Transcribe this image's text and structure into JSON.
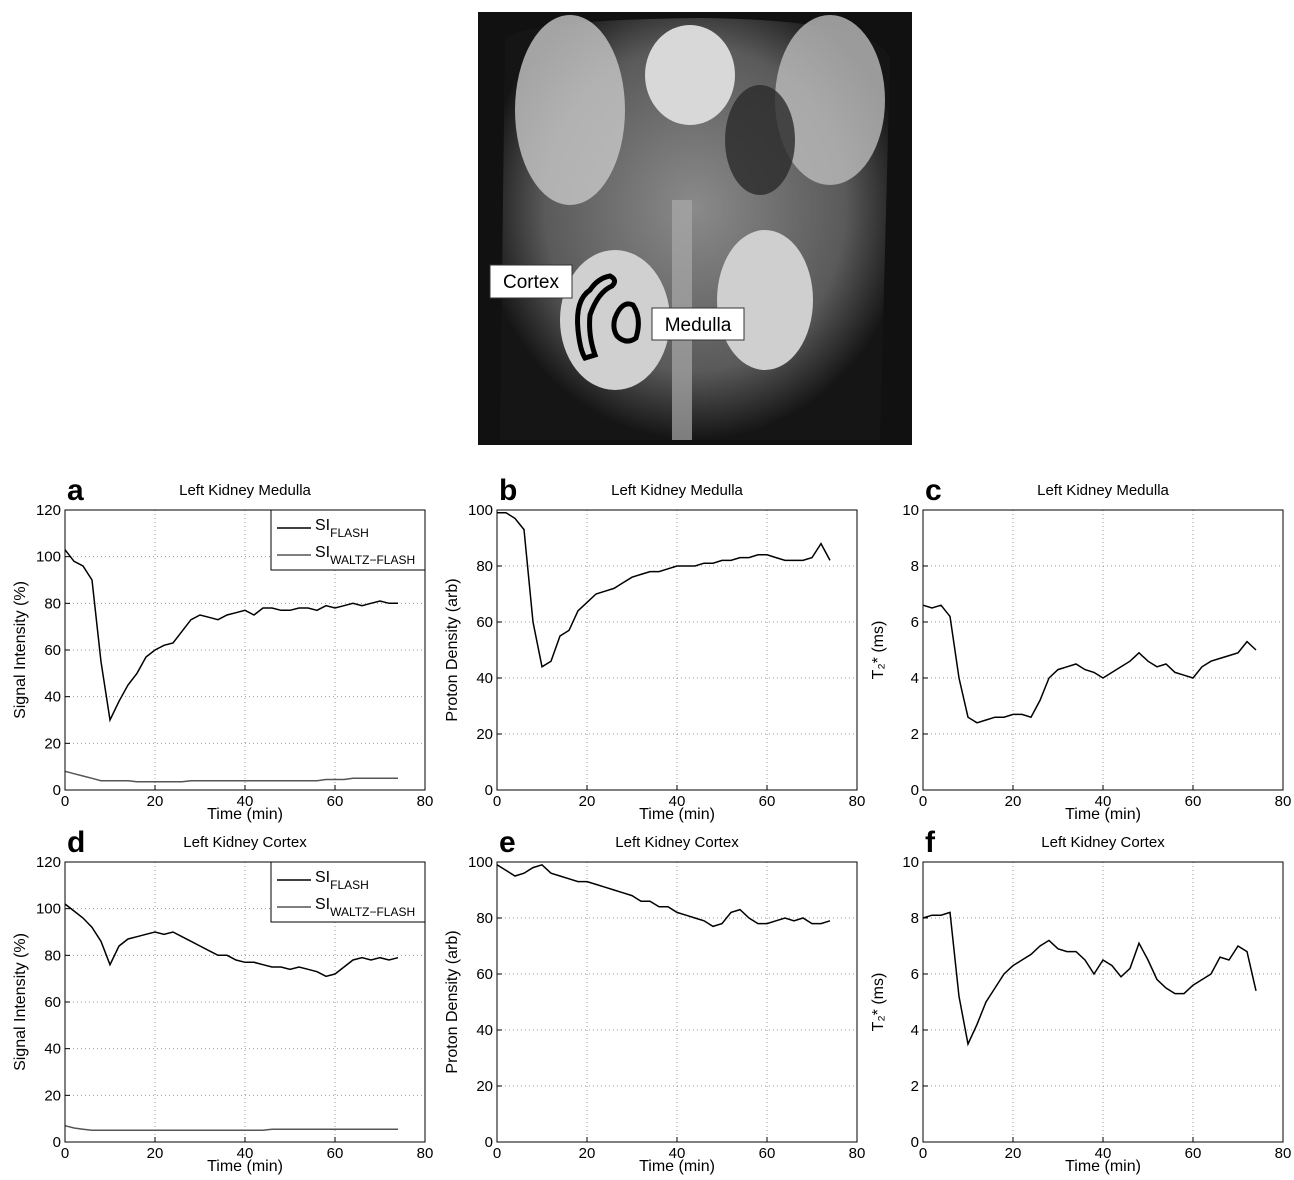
{
  "image": {
    "labels": [
      "Cortex",
      "Medulla"
    ]
  },
  "chart_data": [
    {
      "type": "line",
      "panel": "a",
      "title": "Left Kidney Medulla",
      "xlabel": "Time (min)",
      "ylabel": "Signal Intensity (%)",
      "x": [
        0,
        2,
        4,
        6,
        8,
        10,
        12,
        14,
        16,
        18,
        20,
        22,
        24,
        26,
        28,
        30,
        32,
        34,
        36,
        38,
        40,
        42,
        44,
        46,
        48,
        50,
        52,
        54,
        56,
        58,
        60,
        62,
        64,
        66,
        68,
        70,
        72,
        74
      ],
      "series": [
        {
          "name": "SI",
          "subscript": "FLASH",
          "color": "#000000",
          "values": [
            103,
            98,
            96,
            90,
            55,
            30,
            38,
            45,
            50,
            57,
            60,
            62,
            63,
            68,
            73,
            75,
            74,
            73,
            75,
            76,
            77,
            75,
            78,
            78,
            77,
            77,
            78,
            78,
            77,
            79,
            78,
            79,
            80,
            79,
            80,
            81,
            80,
            80
          ]
        },
        {
          "name": "SI",
          "subscript": "WALTZ−FLASH",
          "color": "#555555",
          "values": [
            8,
            7,
            6,
            5,
            4,
            4,
            4,
            4,
            3.5,
            3.5,
            3.5,
            3.5,
            3.5,
            3.5,
            4,
            4,
            4,
            4,
            4,
            4,
            4,
            4,
            4,
            4,
            4,
            4,
            4,
            4,
            4,
            4.5,
            4.5,
            4.5,
            5,
            5,
            5,
            5,
            5,
            5
          ]
        }
      ],
      "xlim": [
        0,
        80
      ],
      "xticks": [
        0,
        20,
        40,
        60,
        80
      ],
      "ylim": [
        0,
        120
      ],
      "yticks": [
        0,
        20,
        40,
        60,
        80,
        100,
        120
      ],
      "grid": true,
      "legend": "upper-right"
    },
    {
      "type": "line",
      "panel": "b",
      "title": "Left Kidney Medulla",
      "xlabel": "Time (min)",
      "ylabel": "Proton Density (arb)",
      "x": [
        0,
        2,
        4,
        6,
        8,
        10,
        12,
        14,
        16,
        18,
        20,
        22,
        24,
        26,
        28,
        30,
        32,
        34,
        36,
        38,
        40,
        42,
        44,
        46,
        48,
        50,
        52,
        54,
        56,
        58,
        60,
        62,
        64,
        66,
        68,
        70,
        72,
        74
      ],
      "series": [
        {
          "color": "#000000",
          "values": [
            99,
            99,
            97,
            93,
            60,
            44,
            46,
            55,
            57,
            64,
            67,
            70,
            71,
            72,
            74,
            76,
            77,
            78,
            78,
            79,
            80,
            80,
            80,
            81,
            81,
            82,
            82,
            83,
            83,
            84,
            84,
            83,
            82,
            82,
            82,
            83,
            88,
            82
          ]
        }
      ],
      "xlim": [
        0,
        80
      ],
      "xticks": [
        0,
        20,
        40,
        60,
        80
      ],
      "ylim": [
        0,
        100
      ],
      "yticks": [
        0,
        20,
        40,
        60,
        80,
        100
      ],
      "grid": true
    },
    {
      "type": "line",
      "panel": "c",
      "title": "Left Kidney Medulla",
      "xlabel": "Time (min)",
      "ylabel": "T₂* (ms)",
      "x": [
        0,
        2,
        4,
        6,
        8,
        10,
        12,
        14,
        16,
        18,
        20,
        22,
        24,
        26,
        28,
        30,
        32,
        34,
        36,
        38,
        40,
        42,
        44,
        46,
        48,
        50,
        52,
        54,
        56,
        58,
        60,
        62,
        64,
        66,
        68,
        70,
        72,
        74
      ],
      "series": [
        {
          "color": "#000000",
          "values": [
            6.6,
            6.5,
            6.6,
            6.2,
            4.0,
            2.6,
            2.4,
            2.5,
            2.6,
            2.6,
            2.7,
            2.7,
            2.6,
            3.2,
            4.0,
            4.3,
            4.4,
            4.5,
            4.3,
            4.2,
            4.0,
            4.2,
            4.4,
            4.6,
            4.9,
            4.6,
            4.4,
            4.5,
            4.2,
            4.1,
            4.0,
            4.4,
            4.6,
            4.7,
            4.8,
            4.9,
            5.3,
            5.0
          ]
        }
      ],
      "xlim": [
        0,
        80
      ],
      "xticks": [
        0,
        20,
        40,
        60,
        80
      ],
      "ylim": [
        0,
        10
      ],
      "yticks": [
        0,
        2,
        4,
        6,
        8,
        10
      ],
      "grid": true
    },
    {
      "type": "line",
      "panel": "d",
      "title": "Left Kidney Cortex",
      "xlabel": "Time (min)",
      "ylabel": "Signal Intensity (%)",
      "x": [
        0,
        2,
        4,
        6,
        8,
        10,
        12,
        14,
        16,
        18,
        20,
        22,
        24,
        26,
        28,
        30,
        32,
        34,
        36,
        38,
        40,
        42,
        44,
        46,
        48,
        50,
        52,
        54,
        56,
        58,
        60,
        62,
        64,
        66,
        68,
        70,
        72,
        74
      ],
      "series": [
        {
          "name": "SI",
          "subscript": "FLASH",
          "color": "#000000",
          "values": [
            102,
            99,
            96,
            92,
            86,
            76,
            84,
            87,
            88,
            89,
            90,
            89,
            90,
            88,
            86,
            84,
            82,
            80,
            80,
            78,
            77,
            77,
            76,
            75,
            75,
            74,
            75,
            74,
            73,
            71,
            72,
            75,
            78,
            79,
            78,
            79,
            78,
            79
          ]
        },
        {
          "name": "SI",
          "subscript": "WALTZ−FLASH",
          "color": "#555555",
          "values": [
            7,
            6,
            5.5,
            5,
            5,
            5,
            5,
            5,
            5,
            5,
            5,
            5,
            5,
            5,
            5,
            5,
            5,
            5,
            5,
            5,
            5,
            5,
            5,
            5.5,
            5.5,
            5.5,
            5.5,
            5.5,
            5.5,
            5.5,
            5.5,
            5.5,
            5.5,
            5.5,
            5.5,
            5.5,
            5.5,
            5.5
          ]
        }
      ],
      "xlim": [
        0,
        80
      ],
      "xticks": [
        0,
        20,
        40,
        60,
        80
      ],
      "ylim": [
        0,
        120
      ],
      "yticks": [
        0,
        20,
        40,
        60,
        80,
        100,
        120
      ],
      "grid": true,
      "legend": "upper-right"
    },
    {
      "type": "line",
      "panel": "e",
      "title": "Left Kidney Cortex",
      "xlabel": "Time (min)",
      "ylabel": "Proton Density (arb)",
      "x": [
        0,
        2,
        4,
        6,
        8,
        10,
        12,
        14,
        16,
        18,
        20,
        22,
        24,
        26,
        28,
        30,
        32,
        34,
        36,
        38,
        40,
        42,
        44,
        46,
        48,
        50,
        52,
        54,
        56,
        58,
        60,
        62,
        64,
        66,
        68,
        70,
        72,
        74
      ],
      "series": [
        {
          "color": "#000000",
          "values": [
            99,
            97,
            95,
            96,
            98,
            99,
            96,
            95,
            94,
            93,
            93,
            92,
            91,
            90,
            89,
            88,
            86,
            86,
            84,
            84,
            82,
            81,
            80,
            79,
            77,
            78,
            82,
            83,
            80,
            78,
            78,
            79,
            80,
            79,
            80,
            78,
            78,
            79
          ]
        }
      ],
      "xlim": [
        0,
        80
      ],
      "xticks": [
        0,
        20,
        40,
        60,
        80
      ],
      "ylim": [
        0,
        100
      ],
      "yticks": [
        0,
        20,
        40,
        60,
        80,
        100
      ],
      "grid": true
    },
    {
      "type": "line",
      "panel": "f",
      "title": "Left Kidney Cortex",
      "xlabel": "Time (min)",
      "ylabel": "T₂* (ms)",
      "x": [
        0,
        2,
        4,
        6,
        8,
        10,
        12,
        14,
        16,
        18,
        20,
        22,
        24,
        26,
        28,
        30,
        32,
        34,
        36,
        38,
        40,
        42,
        44,
        46,
        48,
        50,
        52,
        54,
        56,
        58,
        60,
        62,
        64,
        66,
        68,
        70,
        72,
        74
      ],
      "series": [
        {
          "color": "#000000",
          "values": [
            8.0,
            8.1,
            8.1,
            8.2,
            5.2,
            3.5,
            4.2,
            5.0,
            5.5,
            6.0,
            6.3,
            6.5,
            6.7,
            7.0,
            7.2,
            6.9,
            6.8,
            6.8,
            6.5,
            6.0,
            6.5,
            6.3,
            5.9,
            6.2,
            7.1,
            6.5,
            5.8,
            5.5,
            5.3,
            5.3,
            5.6,
            5.8,
            6.0,
            6.6,
            6.5,
            7.0,
            6.8,
            5.4
          ]
        }
      ],
      "xlim": [
        0,
        80
      ],
      "xticks": [
        0,
        20,
        40,
        60,
        80
      ],
      "ylim": [
        0,
        10
      ],
      "yticks": [
        0,
        2,
        4,
        6,
        8,
        10
      ],
      "grid": true
    }
  ]
}
